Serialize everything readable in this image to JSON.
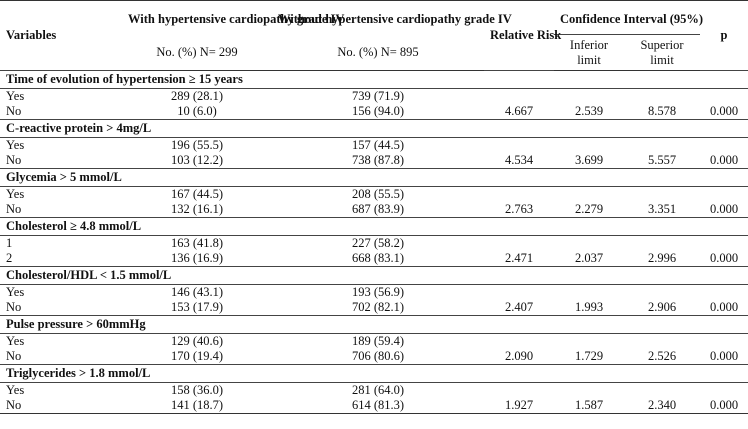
{
  "header": {
    "variables": "Variables",
    "with_title": "With hypertensive cardiopathy grade IV",
    "without_title": "Without hypertensive cardiopathy grade IV",
    "with_sub": "No. (%) N= 299",
    "without_sub": "No. (%) N= 895",
    "rr": "Relative Risk",
    "ci": "Confidence Interval (95%)",
    "inferior": "Inferior limit",
    "superior": "Superior limit",
    "p": "p"
  },
  "sections": [
    {
      "title": "Time of evolution of hypertension ≥ 15 years",
      "rows": [
        {
          "label": "Yes",
          "with": "289 (28.1)",
          "without": "739 (71.9)",
          "rr": "",
          "inf": "",
          "sup": "",
          "p": ""
        },
        {
          "label": "No",
          "with": "10 (6.0)",
          "without": "156 (94.0)",
          "rr": "4.667",
          "inf": "2.539",
          "sup": "8.578",
          "p": "0.000"
        }
      ]
    },
    {
      "title": "C-reactive protein > 4mg/L",
      "rows": [
        {
          "label": "Yes",
          "with": "196 (55.5)",
          "without": "157 (44.5)",
          "rr": "",
          "inf": "",
          "sup": "",
          "p": ""
        },
        {
          "label": "No",
          "with": "103 (12.2)",
          "without": "738 (87.8)",
          "rr": "4.534",
          "inf": "3.699",
          "sup": "5.557",
          "p": "0.000"
        }
      ]
    },
    {
      "title": "Glycemia > 5 mmol/L",
      "rows": [
        {
          "label": "Yes",
          "with": "167 (44.5)",
          "without": "208 (55.5)",
          "rr": "",
          "inf": "",
          "sup": "",
          "p": ""
        },
        {
          "label": "No",
          "with": "132 (16.1)",
          "without": "687 (83.9)",
          "rr": "2.763",
          "inf": "2.279",
          "sup": "3.351",
          "p": "0.000"
        }
      ]
    },
    {
      "title": "Cholesterol ≥ 4.8 mmol/L",
      "rows": [
        {
          "label": "1",
          "with": "163 (41.8)",
          "without": "227 (58.2)",
          "rr": "",
          "inf": "",
          "sup": "",
          "p": ""
        },
        {
          "label": "2",
          "with": "136 (16.9)",
          "without": "668 (83.1)",
          "rr": "2.471",
          "inf": "2.037",
          "sup": "2.996",
          "p": "0.000"
        }
      ]
    },
    {
      "title": "Cholesterol/HDL < 1.5 mmol/L",
      "rows": [
        {
          "label": "Yes",
          "with": "146 (43.1)",
          "without": "193 (56.9)",
          "rr": "",
          "inf": "",
          "sup": "",
          "p": ""
        },
        {
          "label": "No",
          "with": "153 (17.9)",
          "without": "702 (82.1)",
          "rr": "2.407",
          "inf": "1.993",
          "sup": "2.906",
          "p": "0.000"
        }
      ]
    },
    {
      "title": "Pulse pressure > 60mmHg",
      "rows": [
        {
          "label": "Yes",
          "with": "129 (40.6)",
          "without": "189 (59.4)",
          "rr": "",
          "inf": "",
          "sup": "",
          "p": ""
        },
        {
          "label": "No",
          "with": "170 (19.4)",
          "without": "706 (80.6)",
          "rr": "2.090",
          "inf": "1.729",
          "sup": "2.526",
          "p": "0.000"
        }
      ]
    },
    {
      "title": "Triglycerides > 1.8 mmol/L",
      "rows": [
        {
          "label": "Yes",
          "with": "158 (36.0)",
          "without": "281 (64.0)",
          "rr": "",
          "inf": "",
          "sup": "",
          "p": ""
        },
        {
          "label": "No",
          "with": "141 (18.7)",
          "without": "614 (81.3)",
          "rr": "1.927",
          "inf": "1.587",
          "sup": "2.340",
          "p": "0.000"
        }
      ]
    }
  ]
}
